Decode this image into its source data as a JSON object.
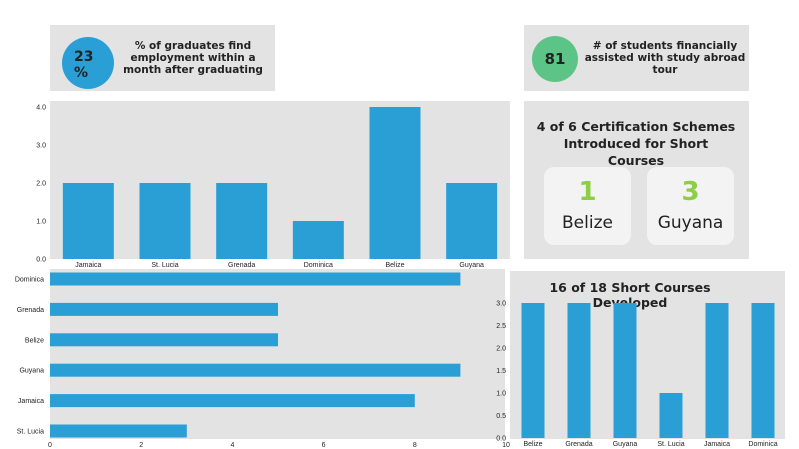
{
  "stats": {
    "employment": {
      "value": "23 %",
      "label": "% of graduates find employment within a month after graduating",
      "color": "#2a9fd6"
    },
    "abroad": {
      "value": "81",
      "label": "# of students financially assisted with study abroad tour",
      "color": "#5cc486"
    }
  },
  "certification": {
    "title": "4 of 6 Certification Schemes Introduced for Short Courses",
    "cards": [
      {
        "number": "1",
        "country": "Belize"
      },
      {
        "number": "3",
        "country": "Guyana"
      }
    ]
  },
  "colors": {
    "bar": "#2a9fd6",
    "panel": "#e3e3e3",
    "accent_green": "#8ccf45"
  },
  "chart_data": [
    {
      "type": "bar",
      "title": "",
      "categories": [
        "Jamaica",
        "St. Lucia",
        "Grenada",
        "Dominica",
        "Belize",
        "Guyana"
      ],
      "values": [
        2,
        2,
        2,
        1,
        4,
        2
      ],
      "ylim": [
        0,
        4
      ],
      "yticks": [
        "0.0",
        "1.0",
        "2.0",
        "3.0",
        "4.0"
      ],
      "xlabel": "",
      "ylabel": "",
      "grid": false
    },
    {
      "type": "bar",
      "orientation": "horizontal",
      "title": "",
      "categories": [
        "Dominica",
        "Grenada",
        "Belize",
        "Guyana",
        "Jamaica",
        "St. Lucia"
      ],
      "values": [
        9,
        5,
        5,
        9,
        8,
        3
      ],
      "xlim": [
        0,
        10
      ],
      "xticks": [
        "0",
        "2",
        "4",
        "6",
        "8",
        "10"
      ],
      "xlabel": "",
      "ylabel": "",
      "grid": false
    },
    {
      "type": "bar",
      "title": "16 of 18 Short Courses Developed",
      "categories": [
        "Belize",
        "Grenada",
        "Guyana",
        "St. Lucia",
        "Jamaica",
        "Dominica"
      ],
      "values": [
        3,
        3,
        3,
        1,
        3,
        3
      ],
      "ylim": [
        0,
        3
      ],
      "yticks": [
        "0.0",
        "0.5",
        "1.0",
        "1.5",
        "2.0",
        "2.5",
        "3.0"
      ],
      "xlabel": "",
      "ylabel": "",
      "grid": false
    }
  ]
}
